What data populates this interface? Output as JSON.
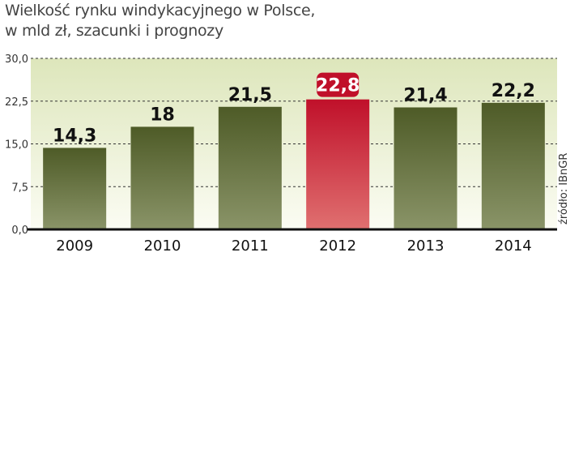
{
  "title": {
    "line1": "Wielkość rynku windykacyjnego w Polsce,",
    "line2": "w mld zł, szacunki i prognozy"
  },
  "source": "źródło: IBnGR",
  "colors": {
    "bar_top": "#4e5b27",
    "bar_bottom": "#8a9468",
    "highlight_top": "#c0102a",
    "highlight_bottom": "#e07070",
    "plot_bg_top": "#dde6bb",
    "plot_bg_bottom": "#fbfcf3"
  },
  "chart_data": {
    "type": "bar",
    "categories": [
      "2009",
      "2010",
      "2011",
      "2012",
      "2013",
      "2014"
    ],
    "values": [
      14.3,
      18,
      21.5,
      22.8,
      21.4,
      22.2
    ],
    "value_labels": [
      "14,3",
      "18",
      "21,5",
      "22,8",
      "21,4",
      "22,2"
    ],
    "highlight_index": 3,
    "yticks": [
      0,
      7.5,
      15,
      22.5,
      30
    ],
    "ytick_labels": [
      "0,0",
      "7,5",
      "15,0",
      "22,5",
      "30,0"
    ],
    "ylim": [
      0,
      30
    ],
    "grid": true,
    "grid_style": "dashed",
    "xlabel": "",
    "ylabel": ""
  }
}
